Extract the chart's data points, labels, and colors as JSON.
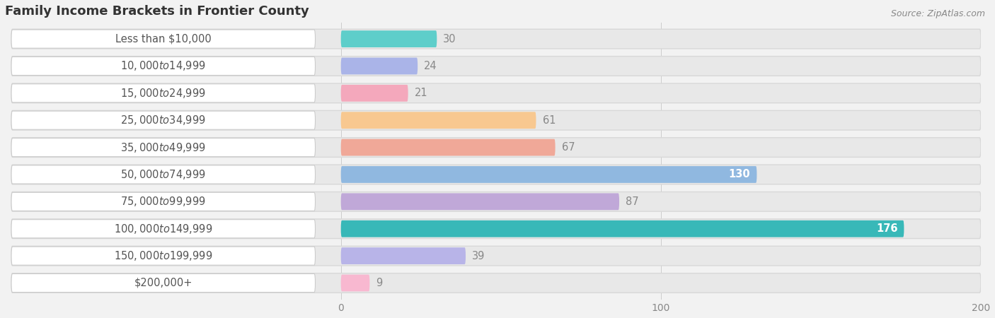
{
  "title": "Family Income Brackets in Frontier County",
  "source": "Source: ZipAtlas.com",
  "categories": [
    "Less than $10,000",
    "$10,000 to $14,999",
    "$15,000 to $24,999",
    "$25,000 to $34,999",
    "$35,000 to $49,999",
    "$50,000 to $74,999",
    "$75,000 to $99,999",
    "$100,000 to $149,999",
    "$150,000 to $199,999",
    "$200,000+"
  ],
  "values": [
    30,
    24,
    21,
    61,
    67,
    130,
    87,
    176,
    39,
    9
  ],
  "bar_colors": [
    "#5ececa",
    "#aab4e8",
    "#f4a8bc",
    "#f8c890",
    "#f0a898",
    "#90b8e0",
    "#c0a8d8",
    "#38b8b8",
    "#b8b4e8",
    "#f8b8d0"
  ],
  "bg_color": "#f2f2f2",
  "bar_bg_color": "#e8e8e8",
  "bar_bg_outline": "#d8d8d8",
  "label_pill_color": "#ffffff",
  "label_text_color": "#555555",
  "value_outside_color": "#888888",
  "value_inside_color": "#ffffff",
  "x_label_offset": -100,
  "xlim_left": -105,
  "xlim_right": 200,
  "xticks": [
    0,
    100,
    200
  ],
  "title_fontsize": 13,
  "label_fontsize": 10.5,
  "value_fontsize": 10.5,
  "source_fontsize": 9
}
